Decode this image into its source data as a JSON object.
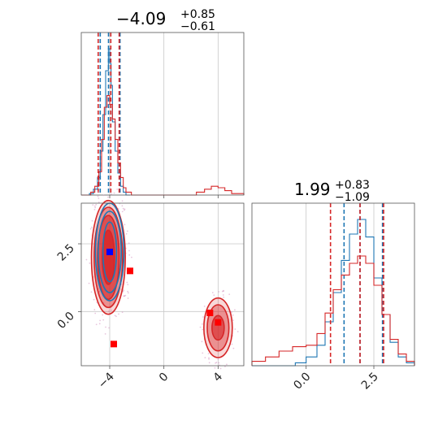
{
  "chart_data": [
    {
      "type": "histogram",
      "panel": "top-left",
      "parameter_index": 0,
      "title": {
        "main": "−4.09",
        "sup": "+0.85",
        "sub": "−0.61"
      },
      "xlim": [
        -6.1,
        5.9
      ],
      "grid": true,
      "colors": {
        "blue": "#1f77b4",
        "red": "#d62728"
      },
      "series": [
        {
          "name": "",
          "color": "blue",
          "quantile_lines": [
            -4.7,
            -4.09,
            -3.24
          ],
          "bin_edges": [
            -6.1,
            -5.5,
            -5.2,
            -4.9,
            -4.7,
            -4.5,
            -4.3,
            -4.1,
            -4.0,
            -3.9,
            -3.8,
            -3.6,
            -3.4,
            -3.2,
            -3.0,
            -2.8,
            -2.5
          ],
          "counts": [
            0,
            0.01,
            0.04,
            0.12,
            0.3,
            0.55,
            0.85,
            1.0,
            0.9,
            0.75,
            0.5,
            0.3,
            0.15,
            0.06,
            0.02,
            0
          ]
        },
        {
          "name": "",
          "color": "red",
          "quantile_lines": [
            -4.85,
            -3.92,
            -3.3
          ],
          "bin_edges": [
            -6.1,
            -5.4,
            -5.1,
            -4.8,
            -4.6,
            -4.4,
            -4.2,
            -4.0,
            -3.8,
            -3.6,
            -3.4,
            -3.2,
            -3.0,
            -2.8,
            -2.4,
            2.4,
            3.0,
            3.5,
            4.0,
            4.5,
            5.0,
            5.9
          ],
          "counts": [
            0,
            0.02,
            0.06,
            0.16,
            0.38,
            0.6,
            0.68,
            0.62,
            0.52,
            0.38,
            0.22,
            0.12,
            0.05,
            0.02,
            0,
            0.02,
            0.04,
            0.06,
            0.05,
            0.03,
            0.01
          ]
        }
      ]
    },
    {
      "type": "histogram",
      "panel": "bottom-right",
      "parameter_index": 1,
      "title": {
        "main": "1.99",
        "sup": "+0.83",
        "sub": "−1.09"
      },
      "xlim": [
        -2.0,
        4.0
      ],
      "xticks": [
        0.0,
        2.5
      ],
      "xtick_labels": [
        "0.0",
        "2.5"
      ],
      "grid": true,
      "series": [
        {
          "name": "",
          "color": "blue",
          "quantile_lines": [
            1.4,
            1.99,
            2.82
          ],
          "bin_edges": [
            -2.0,
            -0.4,
            0.0,
            0.4,
            0.7,
            1.0,
            1.3,
            1.6,
            1.9,
            2.2,
            2.5,
            2.8,
            3.1,
            3.4,
            3.7,
            4.0
          ],
          "counts": [
            0,
            0.02,
            0.06,
            0.14,
            0.3,
            0.5,
            0.72,
            0.9,
            1.0,
            0.88,
            0.6,
            0.35,
            0.16,
            0.06,
            0.02
          ]
        },
        {
          "name": "",
          "color": "red",
          "quantile_lines": [
            0.9,
            1.99,
            2.86
          ],
          "bin_edges": [
            -2.0,
            -1.5,
            -1.0,
            -0.5,
            0.0,
            0.4,
            0.7,
            1.0,
            1.3,
            1.6,
            1.9,
            2.2,
            2.5,
            2.8,
            3.1,
            3.4,
            3.7,
            4.0
          ],
          "counts": [
            0.03,
            0.06,
            0.1,
            0.13,
            0.14,
            0.22,
            0.36,
            0.52,
            0.62,
            0.7,
            0.75,
            0.7,
            0.55,
            0.35,
            0.18,
            0.08,
            0.03
          ]
        }
      ]
    },
    {
      "type": "contour",
      "panel": "bottom-left",
      "xlim": [
        -6.1,
        5.9
      ],
      "ylim": [
        -2.0,
        4.0
      ],
      "xticks": [
        -4,
        0,
        4
      ],
      "xtick_labels": [
        "−4",
        "0",
        "4"
      ],
      "yticks": [
        0.0,
        2.5
      ],
      "ytick_labels": [
        "0.0",
        "2.5"
      ],
      "grid": true,
      "contours": [
        {
          "color": "red",
          "center": [
            -4.1,
            2.0
          ],
          "rx": [
            0.45,
            0.8,
            1.05,
            1.25
          ],
          "ry": [
            1.0,
            1.55,
            1.85,
            2.1
          ]
        },
        {
          "color": "blue",
          "center": [
            -4.0,
            2.2
          ],
          "rx": [
            0.5,
            0.85,
            1.05
          ],
          "ry": [
            1.1,
            1.5,
            1.8
          ]
        },
        {
          "color": "red",
          "center": [
            4.0,
            -0.6
          ],
          "rx": [
            0.45,
            0.8,
            1.05
          ],
          "ry": [
            0.45,
            0.85,
            1.1
          ]
        }
      ],
      "markers": [
        {
          "color": "red",
          "points": [
            [
              -2.5,
              1.5
            ],
            [
              -3.7,
              -1.2
            ],
            [
              3.4,
              -0.05
            ],
            [
              4.0,
              -0.4
            ],
            [
              -4.0,
              2.2
            ]
          ]
        },
        {
          "color": "blue",
          "points": [
            [
              -4.0,
              2.2
            ]
          ]
        }
      ]
    }
  ]
}
